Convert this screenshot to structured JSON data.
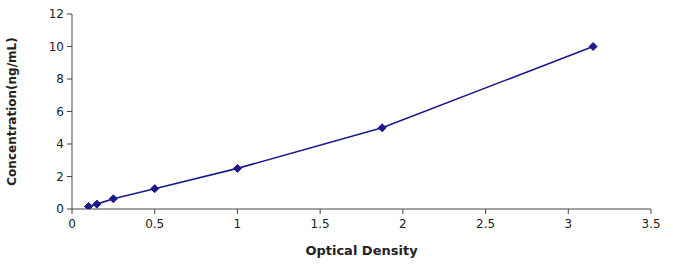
{
  "chart_data": {
    "type": "line",
    "x": [
      0.1,
      0.15,
      0.25,
      0.5,
      1.0,
      1.875,
      3.15
    ],
    "values": [
      0.156,
      0.3,
      0.625,
      1.25,
      2.5,
      5.0,
      10.0
    ],
    "color": "#1a1a8c",
    "marker": "diamond",
    "xlabel": "Optical Density",
    "ylabel": "Concentration(ng/mL)",
    "xlim": [
      0,
      3.5
    ],
    "ylim": [
      0,
      12
    ],
    "xticks": [
      0,
      0.5,
      1,
      1.5,
      2,
      2.5,
      3,
      3.5
    ],
    "yticks": [
      0,
      2,
      4,
      6,
      8,
      10,
      12
    ],
    "grid": false
  }
}
